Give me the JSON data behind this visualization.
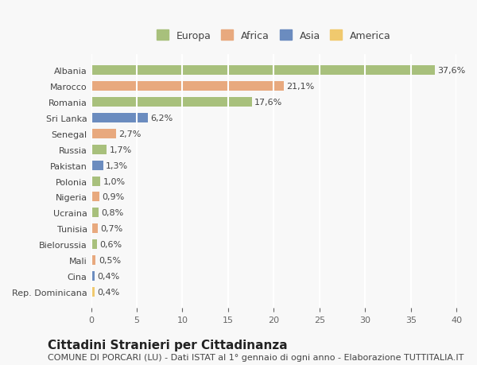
{
  "categories": [
    "Rep. Dominicana",
    "Cina",
    "Mali",
    "Bielorussia",
    "Tunisia",
    "Ucraina",
    "Nigeria",
    "Polonia",
    "Pakistan",
    "Russia",
    "Senegal",
    "Sri Lanka",
    "Romania",
    "Marocco",
    "Albania"
  ],
  "values": [
    0.4,
    0.4,
    0.5,
    0.6,
    0.7,
    0.8,
    0.9,
    1.0,
    1.3,
    1.7,
    2.7,
    6.2,
    17.6,
    21.1,
    37.6
  ],
  "labels": [
    "0,4%",
    "0,4%",
    "0,5%",
    "0,6%",
    "0,7%",
    "0,8%",
    "0,9%",
    "1,0%",
    "1,3%",
    "1,7%",
    "2,7%",
    "6,2%",
    "17,6%",
    "21,1%",
    "37,6%"
  ],
  "continents": [
    "America",
    "Asia",
    "Africa",
    "Europa",
    "Africa",
    "Europa",
    "Africa",
    "Europa",
    "Asia",
    "Europa",
    "Africa",
    "Asia",
    "Europa",
    "Africa",
    "Europa"
  ],
  "continent_colors": {
    "Europa": "#a8c07c",
    "Africa": "#e8a97e",
    "Asia": "#6b8cbf",
    "America": "#f0c96e"
  },
  "legend_order": [
    "Europa",
    "Africa",
    "Asia",
    "America"
  ],
  "title": "Cittadini Stranieri per Cittadinanza",
  "subtitle": "COMUNE DI PORCARI (LU) - Dati ISTAT al 1° gennaio di ogni anno - Elaborazione TUTTITALIA.IT",
  "xlim": [
    0,
    40
  ],
  "xticks": [
    0,
    5,
    10,
    15,
    20,
    25,
    30,
    35,
    40
  ],
  "background_color": "#f8f8f8",
  "grid_color": "#ffffff",
  "bar_height": 0.6,
  "title_fontsize": 11,
  "subtitle_fontsize": 8,
  "label_fontsize": 8,
  "tick_fontsize": 8,
  "legend_fontsize": 9
}
